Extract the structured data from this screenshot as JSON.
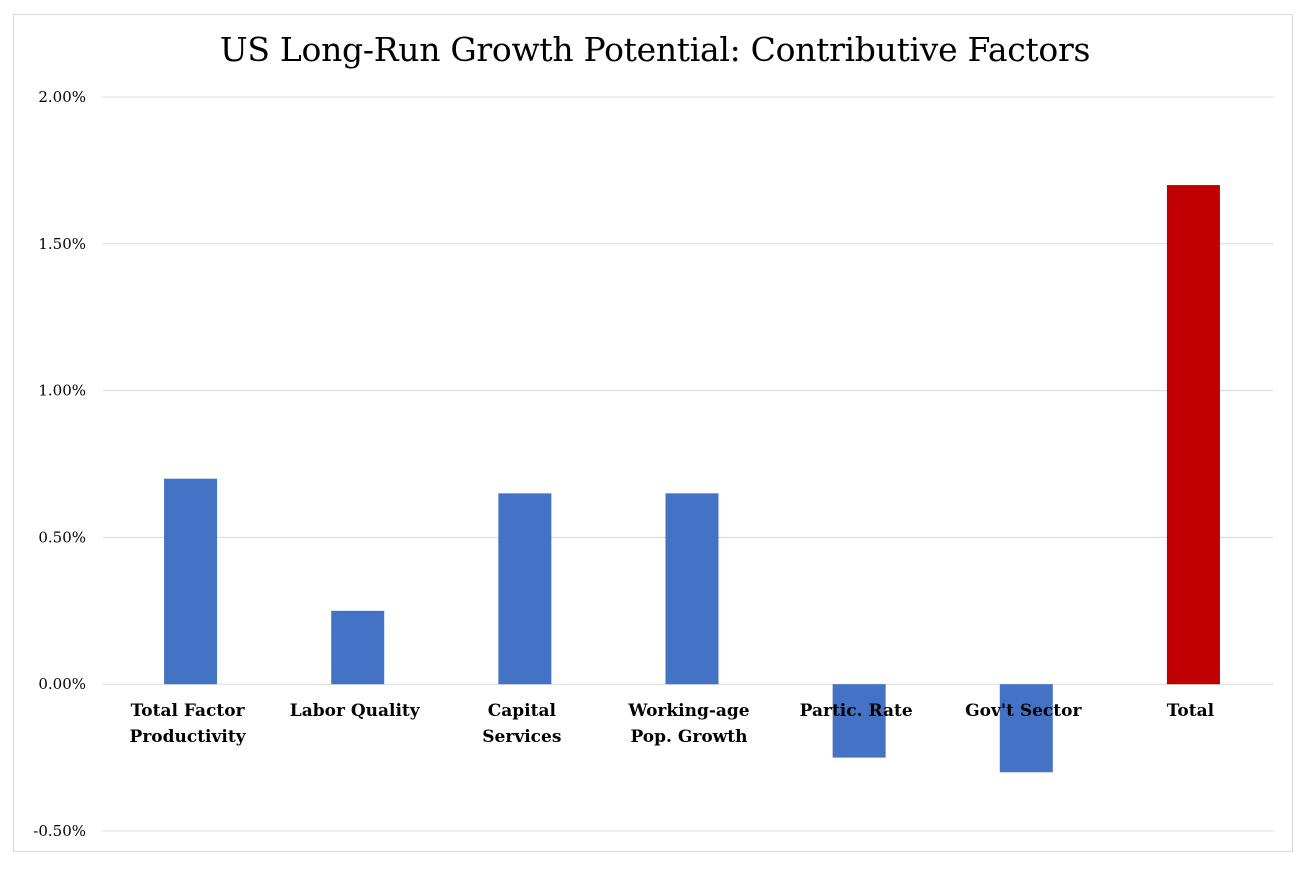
{
  "chart_data": {
    "type": "bar",
    "title": "US Long-Run Growth Potential: Contributive Factors",
    "xlabel": "",
    "ylabel": "",
    "categories": [
      [
        "Total Factor",
        "Productivity"
      ],
      [
        "Labor Quality"
      ],
      [
        "Capital",
        "Services"
      ],
      [
        "Working-age",
        "Pop. Growth"
      ],
      [
        "Partic. Rate"
      ],
      [
        "Gov't Sector"
      ],
      [
        "Total"
      ]
    ],
    "values": [
      0.7,
      0.25,
      0.65,
      0.65,
      -0.25,
      -0.3,
      1.7
    ],
    "colors": [
      "#4472C4",
      "#4472C4",
      "#4472C4",
      "#4472C4",
      "#4472C4",
      "#4472C4",
      "#C00000"
    ],
    "ylim": [
      -0.5,
      2.0
    ],
    "yticks": [
      2.0,
      1.5,
      1.0,
      0.5,
      0.0,
      -0.5
    ],
    "ytick_labels": [
      "2.00%",
      "1.50%",
      "1.00%",
      "0.50%",
      "0.00%",
      "-0.50%"
    ],
    "grid": true,
    "grid_color": "#d9d9d9",
    "legend": "none"
  }
}
